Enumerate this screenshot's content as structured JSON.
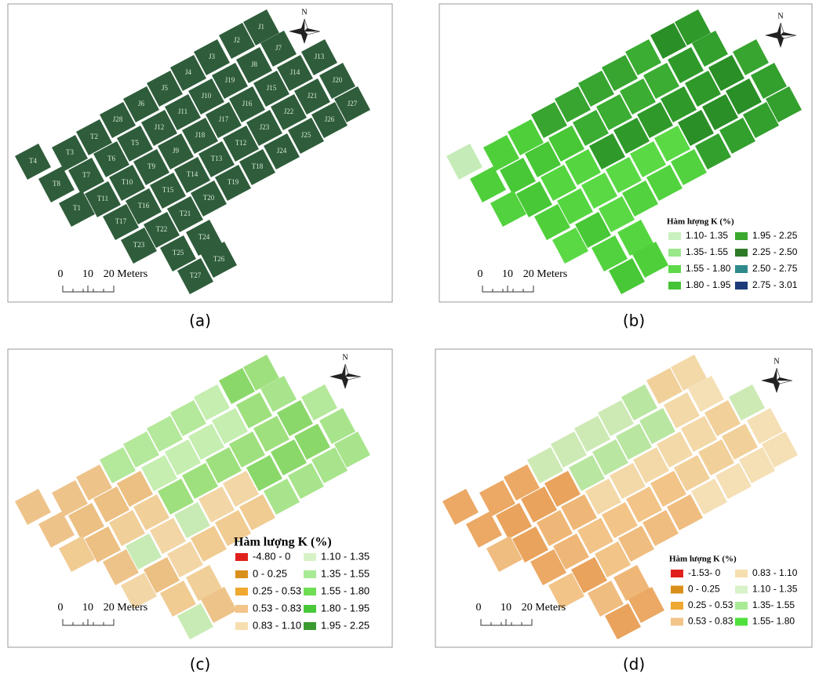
{
  "panels": [
    {
      "caption": "(a)",
      "north": "N",
      "scale": [
        "0",
        "10",
        "20 Meters"
      ],
      "plots": [
        "J1",
        "J2",
        "J7",
        "J13",
        "J3",
        "J8",
        "J14",
        "J20",
        "J4",
        "J19",
        "J15",
        "J21",
        "J27",
        "J5",
        "J10",
        "J16",
        "J22",
        "J26",
        "J6",
        "J11",
        "J17",
        "J23",
        "J25",
        "J28",
        "J12",
        "J18",
        "T12",
        "J24",
        "T2",
        "T5",
        "J9",
        "T13",
        "T18",
        "T3",
        "T6",
        "T9",
        "T14",
        "T19",
        "T4",
        "T7",
        "T10",
        "T15",
        "T20",
        "T8",
        "T11",
        "T16",
        "T21",
        "T1",
        "T17",
        "T22",
        "T24",
        "T23",
        "T25",
        "T26",
        "T27"
      ]
    },
    {
      "caption": "(b)",
      "north": "N",
      "scale": [
        "0",
        "10",
        "20 Meters"
      ],
      "legend": {
        "title": "Hàm lượng K (%)",
        "items": [
          {
            "label": "1.10- 1.35",
            "color": "#c9f0bf"
          },
          {
            "label": "1.35- 1.55",
            "color": "#98e88a"
          },
          {
            "label": "1.55 - 1.80",
            "color": "#5fd94a"
          },
          {
            "label": "1.80 - 1.95",
            "color": "#45c435"
          },
          {
            "label": "1.95 - 2.25",
            "color": "#3aa82e"
          },
          {
            "label": "2.25 - 2.50",
            "color": "#2c7a25"
          },
          {
            "label": "2.50 - 2.75",
            "color": "#2e8a8a"
          },
          {
            "label": "2.75 - 3.01",
            "color": "#1d3b7a"
          }
        ]
      }
    },
    {
      "caption": "(c)",
      "north": "N",
      "scale": [
        "0",
        "10",
        "20 Meters"
      ],
      "legend": {
        "title": "Hàm lượng K (%)",
        "items": [
          {
            "label": "-4.80 - 0",
            "color": "#e0201c"
          },
          {
            "label": "0 - 0.25",
            "color": "#d9901a"
          },
          {
            "label": "0.25 - 0.53",
            "color": "#efa830"
          },
          {
            "label": "0.53 - 0.83",
            "color": "#f2c488"
          },
          {
            "label": "0.83 - 1.10",
            "color": "#f7deb0"
          },
          {
            "label": "1.10 - 1.35",
            "color": "#d8f2c8"
          },
          {
            "label": "1.35 - 1.55",
            "color": "#a8ea95"
          },
          {
            "label": "1.55 - 1.80",
            "color": "#6fde55"
          },
          {
            "label": "1.80 - 1.95",
            "color": "#48c93a"
          },
          {
            "label": "1.95 - 2.25",
            "color": "#3a9a30"
          }
        ]
      }
    },
    {
      "caption": "(d)",
      "north": "N",
      "scale": [
        "0",
        "10",
        "20 Meters"
      ],
      "legend": {
        "title": "Hàm lượng K (%)",
        "items": [
          {
            "label": "-1.53- 0",
            "color": "#e0201c"
          },
          {
            "label": "0 - 0.25",
            "color": "#d9901a"
          },
          {
            "label": "0.25 - 0.53",
            "color": "#efa830"
          },
          {
            "label": "0.53 - 0.83",
            "color": "#f2c488"
          },
          {
            "label": "0.83 - 1.10",
            "color": "#f7deb0"
          },
          {
            "label": "1.10 - 1.35",
            "color": "#d8f2c8"
          },
          {
            "label": "1.35- 1.55",
            "color": "#a8ea95"
          },
          {
            "label": "1.55- 1.80",
            "color": "#4fe03c"
          }
        ]
      }
    }
  ]
}
